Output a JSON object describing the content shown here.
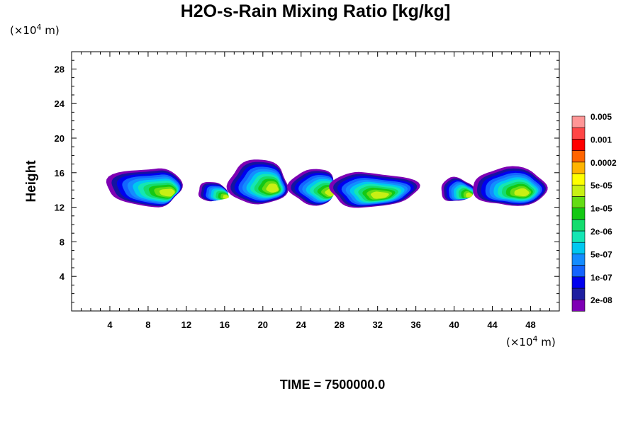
{
  "chart_data": {
    "type": "contour",
    "title": "H2O-s-Rain Mixing Ratio [kg/kg]",
    "ylabel": "Height",
    "xlabel": "",
    "x_unit_prefix": "(×10",
    "x_unit_exp": "4",
    "x_unit_suffix": " m)",
    "y_unit_prefix": "(×10",
    "y_unit_exp": "4",
    "y_unit_suffix": " m)",
    "xlim": [
      0,
      51
    ],
    "ylim": [
      0,
      30
    ],
    "x_ticks": [
      4,
      8,
      12,
      16,
      20,
      24,
      28,
      32,
      36,
      40,
      44,
      48
    ],
    "y_ticks": [
      4,
      8,
      12,
      16,
      20,
      24,
      28
    ],
    "time_label": "TIME = 7500000.0",
    "colorbar": {
      "colors": [
        "#7e00b4",
        "#1e1ea0",
        "#0000ee",
        "#1464ff",
        "#148cff",
        "#00c8f0",
        "#14e6b4",
        "#14dc6e",
        "#14c814",
        "#64dc14",
        "#c8f014",
        "#ffff00",
        "#ffb400",
        "#ff6400",
        "#ff0000",
        "#ff4646",
        "#ff9696"
      ],
      "labels": [
        "2e-08",
        "1e-07",
        "5e-07",
        "2e-06",
        "1e-05",
        "5e-05",
        "0.0002",
        "0.001",
        "0.005"
      ]
    },
    "level_colors": [
      "#7e00b4",
      "#1414a0",
      "#0000ee",
      "#1464ff",
      "#148cff",
      "#00c8f0",
      "#14e6b4",
      "#14dc6e",
      "#14c814",
      "#64dc14",
      "#c8f014"
    ],
    "cells": [
      {
        "xc": 8.7,
        "yc": 14.3,
        "rx": 6.0,
        "ry": 2.4,
        "left": 3.6,
        "right": 11.5
      },
      {
        "xc": 14.6,
        "yc": 13.8,
        "rx": 1.4,
        "ry": 1.2,
        "left": 13.2,
        "right": 16.2
      },
      {
        "xc": 19.5,
        "yc": 14.8,
        "rx": 2.8,
        "ry": 2.8,
        "left": 16.4,
        "right": 22.6
      },
      {
        "xc": 25.6,
        "yc": 14.3,
        "rx": 3.0,
        "ry": 2.3,
        "left": 22.8,
        "right": 27.5
      },
      {
        "xc": 30.5,
        "yc": 14.0,
        "rx": 4.3,
        "ry": 2.2,
        "left": 27.0,
        "right": 36.2
      },
      {
        "xc": 40.0,
        "yc": 14.0,
        "rx": 1.7,
        "ry": 1.5,
        "left": 38.6,
        "right": 42.0
      },
      {
        "xc": 45.5,
        "yc": 14.3,
        "rx": 4.0,
        "ry": 2.4,
        "left": 42.0,
        "right": 49.8
      }
    ]
  }
}
